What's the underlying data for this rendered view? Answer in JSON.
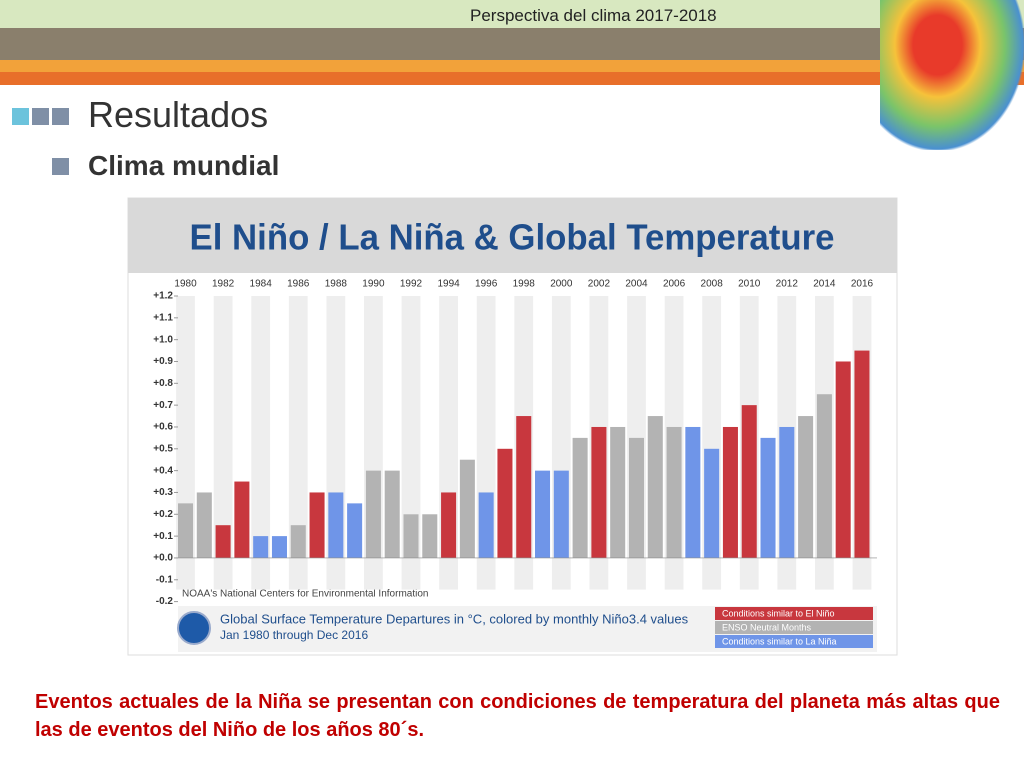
{
  "header": {
    "text": "Perspectiva del clima 2017-2018"
  },
  "slide": {
    "title": "Resultados",
    "subtitle": "Clima mundial",
    "caption": "Eventos actuales de la Niña se presentan con condiciones de temperatura del planeta más altas que las de eventos del Niño de los años 80´s."
  },
  "chart_data": {
    "type": "bar",
    "title": "El Niño / La Niña & Global Temperature",
    "source": "NOAA's National Centers for Environmental Information",
    "legend_title": "Global Surface Temperature Departures in °C, colored by monthly Niño3.4 values",
    "legend_subtitle": "Jan 1980 through Dec 2016",
    "x": [
      1980,
      1981,
      1982,
      1983,
      1984,
      1985,
      1986,
      1987,
      1988,
      1989,
      1990,
      1991,
      1992,
      1993,
      1994,
      1995,
      1996,
      1997,
      1998,
      1999,
      2000,
      2001,
      2002,
      2003,
      2004,
      2005,
      2006,
      2007,
      2008,
      2009,
      2010,
      2011,
      2012,
      2013,
      2014,
      2015,
      2016
    ],
    "xlim": [
      1979.6,
      2016.8
    ],
    "xticks": [
      1980,
      1982,
      1984,
      1986,
      1988,
      1990,
      1992,
      1994,
      1996,
      1998,
      2000,
      2002,
      2004,
      2006,
      2008,
      2010,
      2012,
      2014,
      2016
    ],
    "ylim": [
      -0.2,
      1.2
    ],
    "yticks": [
      {
        "value": -0.2,
        "label": "-0.2"
      },
      {
        "value": -0.1,
        "label": "-0.1"
      },
      {
        "value": 0,
        "label": "+0.0"
      },
      {
        "value": 0.1,
        "label": "+0.1"
      },
      {
        "value": 0.2,
        "label": "+0.2"
      },
      {
        "value": 0.3,
        "label": "+0.3"
      },
      {
        "value": 0.4,
        "label": "+0.4"
      },
      {
        "value": 0.5,
        "label": "+0.5"
      },
      {
        "value": 0.6,
        "label": "+0.6"
      },
      {
        "value": 0.7,
        "label": "+0.7"
      },
      {
        "value": 0.8,
        "label": "+0.8"
      },
      {
        "value": 0.9,
        "label": "+0.9"
      },
      {
        "value": 1.0,
        "label": "+1.0"
      },
      {
        "value": 1.1,
        "label": "+1.1"
      },
      {
        "value": 1.2,
        "label": "+1.2"
      }
    ],
    "series": [
      {
        "name": "Conditions similar to El Niño",
        "color": "#c8373e",
        "values": [
          null,
          null,
          0.15,
          0.35,
          null,
          null,
          null,
          0.3,
          null,
          null,
          null,
          null,
          null,
          null,
          0.3,
          null,
          null,
          0.5,
          0.65,
          null,
          null,
          null,
          0.6,
          null,
          null,
          null,
          null,
          null,
          null,
          0.6,
          0.7,
          null,
          null,
          null,
          null,
          0.9,
          0.95
        ]
      },
      {
        "name": "ENSO Neutral Months",
        "color": "#b3b3b3",
        "values": [
          0.25,
          0.3,
          null,
          null,
          null,
          null,
          0.15,
          null,
          null,
          null,
          0.4,
          0.4,
          0.2,
          0.2,
          null,
          0.45,
          null,
          null,
          null,
          null,
          null,
          0.55,
          null,
          0.6,
          0.55,
          0.65,
          0.6,
          null,
          null,
          null,
          null,
          null,
          null,
          0.65,
          0.75,
          null,
          null
        ]
      },
      {
        "name": "Conditions similar to La Niña",
        "color": "#6f95e8",
        "values": [
          null,
          null,
          null,
          null,
          0.1,
          0.1,
          null,
          null,
          0.3,
          0.25,
          null,
          null,
          null,
          null,
          null,
          null,
          0.3,
          null,
          null,
          0.4,
          0.4,
          null,
          null,
          null,
          null,
          null,
          null,
          0.6,
          0.5,
          null,
          null,
          0.55,
          0.6,
          null,
          null,
          null,
          null
        ]
      }
    ]
  }
}
